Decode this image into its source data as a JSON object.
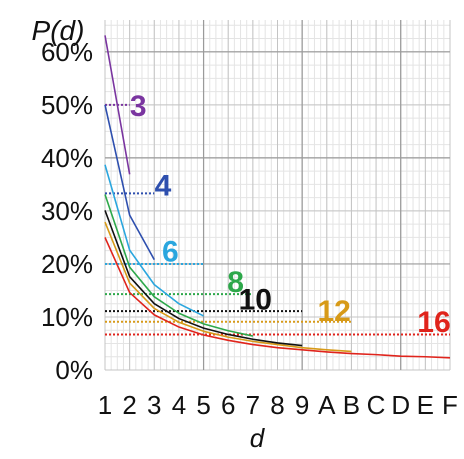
{
  "chart_data": {
    "type": "line",
    "title": "",
    "ylabel": "P(d)",
    "xlabel": "d",
    "x": [
      1,
      2,
      3,
      4,
      5,
      6,
      7,
      8,
      9,
      10,
      11,
      12,
      13,
      14,
      15
    ],
    "xtick_labels": [
      "1",
      "2",
      "3",
      "4",
      "5",
      "6",
      "7",
      "8",
      "9",
      "A",
      "B",
      "C",
      "D",
      "E",
      "F"
    ],
    "ytick_labels": [
      "0%",
      "10%",
      "20%",
      "30%",
      "40%",
      "50%",
      "60%"
    ],
    "yticks": [
      0,
      10,
      20,
      30,
      40,
      50,
      60
    ],
    "ylim": [
      0,
      66
    ],
    "xlim": [
      1,
      15
    ],
    "grid": true,
    "series": [
      {
        "name": "3",
        "color": "#7a35a0",
        "x": [
          1,
          2
        ],
        "values": [
          63.1,
          36.9
        ],
        "reference": 50.0,
        "ref_x": [
          1,
          2
        ],
        "label_x": 2.35,
        "label_y": 50
      },
      {
        "name": "4",
        "color": "#2e4fae",
        "x": [
          1,
          2,
          3
        ],
        "values": [
          50.0,
          29.2,
          20.8
        ],
        "reference": 33.3,
        "ref_x": [
          1,
          3
        ],
        "label_x": 3.35,
        "label_y": 35
      },
      {
        "name": "6",
        "color": "#2aa6de",
        "x": [
          1,
          2,
          3,
          4,
          5
        ],
        "values": [
          38.7,
          22.6,
          16.1,
          12.5,
          10.2
        ],
        "reference": 20.0,
        "ref_x": [
          1,
          5
        ],
        "label_x": 3.65,
        "label_y": 22.5
      },
      {
        "name": "8",
        "color": "#2da84a",
        "x": [
          1,
          2,
          3,
          4,
          5,
          6,
          7
        ],
        "values": [
          33.1,
          19.4,
          13.8,
          10.7,
          8.7,
          7.4,
          6.4
        ],
        "reference": 14.3,
        "ref_x": [
          1,
          7
        ],
        "label_x": 6.3,
        "label_y": 16.8
      },
      {
        "name": "10",
        "color": "#111111",
        "x": [
          1,
          2,
          3,
          4,
          5,
          6,
          7,
          8,
          9
        ],
        "values": [
          30.1,
          17.6,
          12.5,
          9.7,
          7.9,
          6.7,
          5.8,
          5.1,
          4.6
        ],
        "reference": 11.1,
        "ref_x": [
          1,
          9
        ],
        "label_x": 7.1,
        "label_y": 13.5
      },
      {
        "name": "12",
        "color": "#d79a18",
        "x": [
          1,
          2,
          3,
          4,
          5,
          6,
          7,
          8,
          9,
          10,
          11
        ],
        "values": [
          27.9,
          16.4,
          11.6,
          9.0,
          7.3,
          6.2,
          5.4,
          4.8,
          4.2,
          3.8,
          3.5
        ],
        "reference": 9.1,
        "ref_x": [
          1,
          11
        ],
        "label_x": 10.3,
        "label_y": 11.3
      },
      {
        "name": "16",
        "color": "#e0241c",
        "x": [
          1,
          2,
          3,
          4,
          5,
          6,
          7,
          8,
          9,
          10,
          11,
          12,
          13,
          14,
          15
        ],
        "values": [
          25.0,
          14.6,
          10.4,
          8.1,
          6.6,
          5.6,
          4.8,
          4.2,
          3.8,
          3.4,
          3.1,
          2.9,
          2.6,
          2.5,
          2.3
        ],
        "reference": 6.7,
        "ref_x": [
          1,
          15
        ],
        "label_x": 14.35,
        "label_y": 9.2
      }
    ]
  }
}
